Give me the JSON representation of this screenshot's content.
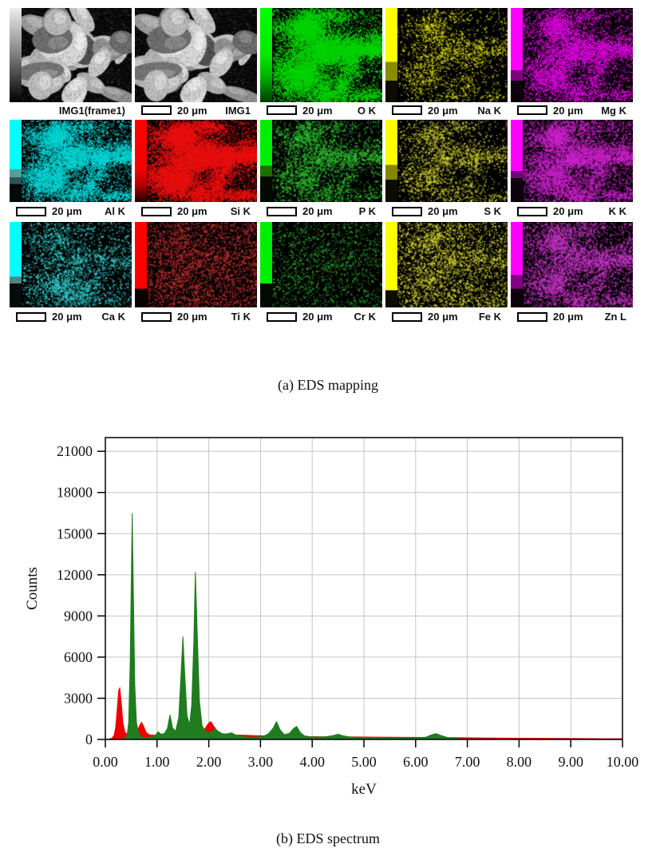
{
  "captions": {
    "a": "(a) EDS mapping",
    "b": "(b) EDS spectrum"
  },
  "mapping": {
    "scale_text": "20 μm",
    "rows": [
      [
        {
          "label": "IMG1(frame1)",
          "type": "sem",
          "scalebar": false,
          "seed": 1,
          "colorbar": [
            [
              "#ededed",
              0
            ],
            [
              "#8a8a8a",
              45
            ],
            [
              "#000000",
              100
            ]
          ]
        },
        {
          "label": "IMG1",
          "type": "sem",
          "scalebar": true,
          "seed": 1,
          "colorbar": null
        },
        {
          "label": "O K",
          "type": "map",
          "scalebar": true,
          "color": "#00d400",
          "dots": 16000,
          "cluster": 0.85,
          "seed": 3,
          "colorbar": [
            [
              "#00ff00",
              0
            ],
            [
              "#00e800",
              50
            ],
            [
              "#00b400",
              72
            ],
            [
              "#013901",
              100
            ]
          ]
        },
        {
          "label": "Na K",
          "type": "map",
          "scalebar": true,
          "color": "#d9d900",
          "dots": 2400,
          "cluster": 0.7,
          "seed": 4,
          "colorbar": [
            [
              "#ffff00",
              0
            ],
            [
              "#ffff00",
              57
            ],
            [
              "#8a8a00",
              57
            ],
            [
              "#8a8a00",
              77
            ],
            [
              "#0c0c00",
              77
            ],
            [
              "#0c0c00",
              100
            ]
          ]
        },
        {
          "label": "Mg K",
          "type": "map",
          "scalebar": true,
          "color": "#d900d9",
          "dots": 8000,
          "cluster": 0.75,
          "seed": 5,
          "colorbar": [
            [
              "#ff00ff",
              0
            ],
            [
              "#ff00ff",
              66
            ],
            [
              "#7d007d",
              66
            ],
            [
              "#7d007d",
              77
            ],
            [
              "#0d000d",
              77
            ],
            [
              "#0d000d",
              100
            ]
          ]
        }
      ],
      [
        {
          "label": "Al K",
          "type": "map",
          "scalebar": true,
          "color": "#00d4d4",
          "dots": 10000,
          "cluster": 0.8,
          "seed": 6,
          "colorbar": [
            [
              "#00ffff",
              0
            ],
            [
              "#00ffff",
              60
            ],
            [
              "#579d9d",
              60
            ],
            [
              "#579d9d",
              70
            ],
            [
              "#2e5555",
              70
            ],
            [
              "#2e5555",
              78
            ],
            [
              "#020909",
              78
            ],
            [
              "#020909",
              100
            ]
          ]
        },
        {
          "label": "Si K",
          "type": "map",
          "scalebar": true,
          "color": "#e81010",
          "dots": 17000,
          "cluster": 0.85,
          "seed": 7,
          "colorbar": [
            [
              "#ff0000",
              0
            ],
            [
              "#f40000",
              60
            ],
            [
              "#ae0000",
              80
            ],
            [
              "#1c0000",
              100
            ]
          ]
        },
        {
          "label": "P K",
          "type": "map",
          "scalebar": true,
          "color": "#2fbf2f",
          "dots": 3800,
          "cluster": 0.7,
          "seed": 8,
          "colorbar": [
            [
              "#00ee00",
              0
            ],
            [
              "#00ee00",
              56
            ],
            [
              "#1d6e00",
              56
            ],
            [
              "#1d6e00",
              69
            ],
            [
              "#020a00",
              69
            ],
            [
              "#020a00",
              100
            ]
          ]
        },
        {
          "label": "S K",
          "type": "map",
          "scalebar": true,
          "color": "#cccc33",
          "dots": 2600,
          "cluster": 0.7,
          "seed": 9,
          "colorbar": [
            [
              "#ffff00",
              0
            ],
            [
              "#ffff00",
              55
            ],
            [
              "#858500",
              55
            ],
            [
              "#858500",
              73
            ],
            [
              "#0c0c00",
              73
            ],
            [
              "#0c0c00",
              100
            ]
          ]
        },
        {
          "label": "K K",
          "type": "map",
          "scalebar": true,
          "color": "#cc22cc",
          "dots": 8500,
          "cluster": 0.7,
          "seed": 10,
          "colorbar": [
            [
              "#ff00ff",
              0
            ],
            [
              "#ff00ff",
              62
            ],
            [
              "#740074",
              62
            ],
            [
              "#740074",
              71
            ],
            [
              "#0d000d",
              71
            ],
            [
              "#0d000d",
              100
            ]
          ]
        }
      ],
      [
        {
          "label": "Ca K",
          "type": "map",
          "scalebar": true,
          "color": "#33cccc",
          "dots": 2600,
          "cluster": 0.5,
          "seed": 11,
          "hotspot": [
            0.45,
            0.78,
            0.13,
            700
          ],
          "colorbar": [
            [
              "#00ffff",
              0
            ],
            [
              "#00ffff",
              64
            ],
            [
              "#4d8585",
              64
            ],
            [
              "#4d8585",
              72
            ],
            [
              "#030b0b",
              72
            ],
            [
              "#030b0b",
              100
            ]
          ]
        },
        {
          "label": "Ti K",
          "type": "map",
          "scalebar": true,
          "color": "#c03030",
          "dots": 3500,
          "cluster": 0.25,
          "seed": 12,
          "colorbar": [
            [
              "#ff0000",
              0
            ],
            [
              "#ff0000",
              78
            ],
            [
              "#0a0000",
              78
            ],
            [
              "#0a0000",
              100
            ]
          ]
        },
        {
          "label": "Cr K",
          "type": "map",
          "scalebar": true,
          "color": "#2aa52a",
          "dots": 1600,
          "cluster": 0.2,
          "seed": 13,
          "colorbar": [
            [
              "#00ee00",
              0
            ],
            [
              "#00ee00",
              72
            ],
            [
              "#020a02",
              72
            ],
            [
              "#020a02",
              100
            ]
          ]
        },
        {
          "label": "Fe K",
          "type": "map",
          "scalebar": true,
          "color": "#d6d633",
          "dots": 3200,
          "cluster": 0.35,
          "seed": 14,
          "colorbar": [
            [
              "#ffff00",
              0
            ],
            [
              "#ffff00",
              80
            ],
            [
              "#0c0c00",
              80
            ],
            [
              "#0c0c00",
              100
            ]
          ]
        },
        {
          "label": "Zn L",
          "type": "map",
          "scalebar": true,
          "color": "#c433c4",
          "dots": 6000,
          "cluster": 0.6,
          "seed": 15,
          "colorbar": [
            [
              "#ff00ff",
              0
            ],
            [
              "#ff00ff",
              62
            ],
            [
              "#820082",
              62
            ],
            [
              "#820082",
              78
            ],
            [
              "#0d000d",
              78
            ],
            [
              "#0d000d",
              100
            ]
          ]
        }
      ]
    ]
  },
  "chart_data": {
    "type": "area",
    "title": "",
    "xlabel": "keV",
    "ylabel": "Counts",
    "xlim": [
      0,
      10
    ],
    "ylim": [
      0,
      22000
    ],
    "xtick_values": [
      0,
      1,
      2,
      3,
      4,
      5,
      6,
      7,
      8,
      9,
      10
    ],
    "xtick_labels": [
      "0.00",
      "1.00",
      "2.00",
      "3.00",
      "4.00",
      "5.00",
      "6.00",
      "7.00",
      "8.00",
      "9.00",
      "10.00"
    ],
    "ytick_values": [
      0,
      3000,
      6000,
      9000,
      12000,
      15000,
      18000,
      21000
    ],
    "grid": true,
    "grid_color": "#c4c4c4",
    "legend": "none",
    "series": [
      {
        "name": "red",
        "color": "#ee0000",
        "points": [
          [
            0.0,
            8
          ],
          [
            0.08,
            30
          ],
          [
            0.13,
            90
          ],
          [
            0.17,
            300
          ],
          [
            0.2,
            900
          ],
          [
            0.23,
            2200
          ],
          [
            0.26,
            3600
          ],
          [
            0.28,
            3750
          ],
          [
            0.31,
            2600
          ],
          [
            0.34,
            1200
          ],
          [
            0.38,
            520
          ],
          [
            0.44,
            300
          ],
          [
            0.5,
            230
          ],
          [
            0.56,
            280
          ],
          [
            0.61,
            500
          ],
          [
            0.66,
            1000
          ],
          [
            0.7,
            1250
          ],
          [
            0.74,
            950
          ],
          [
            0.79,
            500
          ],
          [
            0.85,
            340
          ],
          [
            0.95,
            300
          ],
          [
            1.1,
            320
          ],
          [
            1.25,
            380
          ],
          [
            1.4,
            440
          ],
          [
            1.55,
            480
          ],
          [
            1.7,
            460
          ],
          [
            1.82,
            500
          ],
          [
            1.92,
            750
          ],
          [
            2.0,
            1200
          ],
          [
            2.04,
            1300
          ],
          [
            2.09,
            1000
          ],
          [
            2.16,
            600
          ],
          [
            2.24,
            420
          ],
          [
            2.35,
            350
          ],
          [
            2.5,
            320
          ],
          [
            2.7,
            300
          ],
          [
            2.95,
            270
          ],
          [
            3.2,
            250
          ],
          [
            3.5,
            230
          ],
          [
            3.8,
            215
          ],
          [
            4.1,
            200
          ],
          [
            4.4,
            190
          ],
          [
            4.7,
            185
          ],
          [
            5.0,
            175
          ],
          [
            5.3,
            168
          ],
          [
            5.6,
            160
          ],
          [
            5.9,
            152
          ],
          [
            6.2,
            145
          ],
          [
            6.5,
            138
          ],
          [
            6.8,
            130
          ],
          [
            7.1,
            118
          ],
          [
            7.4,
            105
          ],
          [
            7.7,
            95
          ],
          [
            8.0,
            88
          ],
          [
            8.4,
            80
          ],
          [
            8.8,
            72
          ],
          [
            9.2,
            62
          ],
          [
            9.6,
            55
          ],
          [
            10.0,
            50
          ]
        ]
      },
      {
        "name": "green",
        "color": "#1f7d1f",
        "points": [
          [
            0.0,
            5
          ],
          [
            0.2,
            10
          ],
          [
            0.3,
            30
          ],
          [
            0.38,
            80
          ],
          [
            0.42,
            300
          ],
          [
            0.45,
            1200
          ],
          [
            0.48,
            5500
          ],
          [
            0.5,
            11000
          ],
          [
            0.52,
            16500
          ],
          [
            0.545,
            10000
          ],
          [
            0.57,
            4000
          ],
          [
            0.6,
            1300
          ],
          [
            0.64,
            450
          ],
          [
            0.7,
            180
          ],
          [
            0.8,
            120
          ],
          [
            0.9,
            180
          ],
          [
            0.96,
            280
          ],
          [
            1.02,
            550
          ],
          [
            1.08,
            380
          ],
          [
            1.14,
            420
          ],
          [
            1.2,
            800
          ],
          [
            1.25,
            1800
          ],
          [
            1.3,
            850
          ],
          [
            1.36,
            600
          ],
          [
            1.42,
            1600
          ],
          [
            1.46,
            4500
          ],
          [
            1.5,
            7500
          ],
          [
            1.54,
            4400
          ],
          [
            1.58,
            1700
          ],
          [
            1.63,
            1100
          ],
          [
            1.67,
            2500
          ],
          [
            1.71,
            7000
          ],
          [
            1.74,
            12200
          ],
          [
            1.78,
            7500
          ],
          [
            1.82,
            2800
          ],
          [
            1.87,
            1000
          ],
          [
            1.93,
            600
          ],
          [
            2.0,
            500
          ],
          [
            2.06,
            550
          ],
          [
            2.12,
            800
          ],
          [
            2.18,
            600
          ],
          [
            2.26,
            420
          ],
          [
            2.34,
            400
          ],
          [
            2.44,
            480
          ],
          [
            2.52,
            330
          ],
          [
            2.62,
            220
          ],
          [
            2.75,
            170
          ],
          [
            2.9,
            170
          ],
          [
            3.05,
            220
          ],
          [
            3.15,
            400
          ],
          [
            3.24,
            800
          ],
          [
            3.31,
            1300
          ],
          [
            3.38,
            700
          ],
          [
            3.46,
            350
          ],
          [
            3.56,
            450
          ],
          [
            3.64,
            800
          ],
          [
            3.7,
            950
          ],
          [
            3.77,
            500
          ],
          [
            3.85,
            260
          ],
          [
            3.95,
            200
          ],
          [
            4.1,
            170
          ],
          [
            4.25,
            190
          ],
          [
            4.4,
            280
          ],
          [
            4.5,
            380
          ],
          [
            4.6,
            260
          ],
          [
            4.75,
            170
          ],
          [
            4.9,
            150
          ],
          [
            5.1,
            140
          ],
          [
            5.3,
            130
          ],
          [
            5.5,
            125
          ],
          [
            5.7,
            120
          ],
          [
            5.9,
            115
          ],
          [
            6.05,
            120
          ],
          [
            6.2,
            170
          ],
          [
            6.32,
            350
          ],
          [
            6.4,
            420
          ],
          [
            6.5,
            280
          ],
          [
            6.62,
            140
          ],
          [
            6.75,
            70
          ],
          [
            6.9,
            30
          ],
          [
            7.0,
            10
          ]
        ]
      }
    ]
  }
}
